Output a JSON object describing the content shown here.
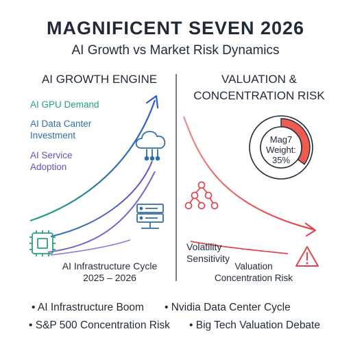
{
  "header": {
    "title": "MAGNIFICENT SEVEN 2026",
    "subtitle": "AI Growth vs Market Risk Dynamics"
  },
  "left_panel": {
    "heading": "AI GROWTH ENGINE",
    "series": [
      {
        "label": "AI GPU Demand",
        "color": "#22a37a"
      },
      {
        "label": "AI Data Canter\nInvestment",
        "color": "#2d6fa8"
      },
      {
        "label": "AI Service\nAdoption",
        "color": "#6b4fc0"
      }
    ],
    "caption": "AI Infrastructure Cycle\n2025 – 2026",
    "icons": [
      "cloud-network-icon",
      "server-rack-icon",
      "chip-icon"
    ]
  },
  "right_panel": {
    "heading": "VALUATION &\nCONCENTRATION RISK",
    "donut": {
      "label": "Mag7\nWeight:\n35%",
      "fraction": 0.35,
      "fill_color": "#ef5b4f"
    },
    "volatility_label": "Volatility\nSensitivity",
    "risk_label": "Valuation\nConcentration Risk",
    "icons": [
      "hierarchy-icon",
      "warning-icon"
    ],
    "accent_color": "#e0434d"
  },
  "footer": {
    "items": [
      "• AI Infrastructure Boom",
      "• Nvidia Data Center Cycle",
      "• S&P 500 Concentration Risk",
      "• Big Tech Valuation Debate"
    ]
  }
}
